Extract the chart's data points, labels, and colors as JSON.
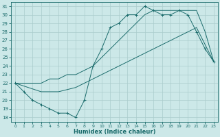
{
  "xlabel": "Humidex (Indice chaleur)",
  "xlim": [
    -0.5,
    23.5
  ],
  "ylim": [
    17.5,
    31.5
  ],
  "xticks": [
    0,
    1,
    2,
    3,
    4,
    5,
    6,
    7,
    8,
    9,
    10,
    11,
    12,
    13,
    14,
    15,
    16,
    17,
    18,
    19,
    20,
    21,
    22,
    23
  ],
  "yticks": [
    18,
    19,
    20,
    21,
    22,
    23,
    24,
    25,
    26,
    27,
    28,
    29,
    30,
    31
  ],
  "bg_color": "#cce8e8",
  "grid_color": "#aacccc",
  "line_color": "#1a6b6b",
  "line1_x": [
    0,
    1,
    2,
    3,
    4,
    5,
    6,
    7,
    8,
    9,
    10,
    11,
    12,
    13,
    14,
    15,
    16,
    17,
    18,
    19,
    20,
    21,
    22,
    23
  ],
  "line1_y": [
    22,
    21,
    20,
    19.5,
    19,
    18.5,
    18.5,
    18,
    20,
    24,
    26,
    28.5,
    29,
    30,
    30,
    31,
    30.5,
    30,
    30,
    30.5,
    30,
    28,
    26,
    24.5
  ],
  "line2_x": [
    0,
    1,
    2,
    3,
    4,
    5,
    6,
    7,
    8,
    9,
    10,
    11,
    12,
    13,
    14,
    15,
    16,
    17,
    18,
    19,
    20,
    21,
    22,
    23
  ],
  "line2_y": [
    22,
    22,
    22,
    22,
    22.5,
    22.5,
    23,
    23,
    23.5,
    24,
    25,
    26,
    27,
    28,
    29,
    30,
    30.5,
    30.5,
    30.5,
    30.5,
    30.5,
    30.5,
    28,
    24.5
  ],
  "line3_x": [
    0,
    3,
    5,
    7,
    9,
    11,
    13,
    15,
    17,
    19,
    21,
    23
  ],
  "line3_y": [
    22,
    21,
    21,
    21.5,
    22.5,
    23.5,
    24.5,
    25.5,
    26.5,
    27.5,
    28.5,
    24.5
  ]
}
